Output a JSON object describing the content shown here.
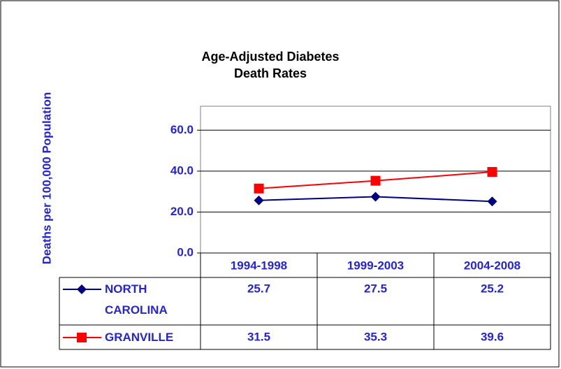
{
  "chart_data": {
    "type": "line",
    "title": "Age-Adjusted Diabetes Death Rates",
    "y_label": "Deaths per 100,000 Population",
    "categories": [
      "1994-1998",
      "1999-2003",
      "2004-2008"
    ],
    "series": [
      {
        "name": "NORTH CAROLINA",
        "color": "#000080",
        "marker": "diamond",
        "values": [
          25.7,
          27.5,
          25.2
        ]
      },
      {
        "name": "GRANVILLE",
        "color": "#ff0000",
        "marker": "square",
        "values": [
          31.5,
          35.3,
          39.6
        ]
      }
    ],
    "ylim": [
      0,
      70
    ],
    "yticks": [
      {
        "value": 0,
        "label": "0.0"
      },
      {
        "value": 20,
        "label": "20.0"
      },
      {
        "value": 40,
        "label": "40.0"
      },
      {
        "value": 60,
        "label": "60.0"
      }
    ],
    "grid": true,
    "data_table": true
  }
}
